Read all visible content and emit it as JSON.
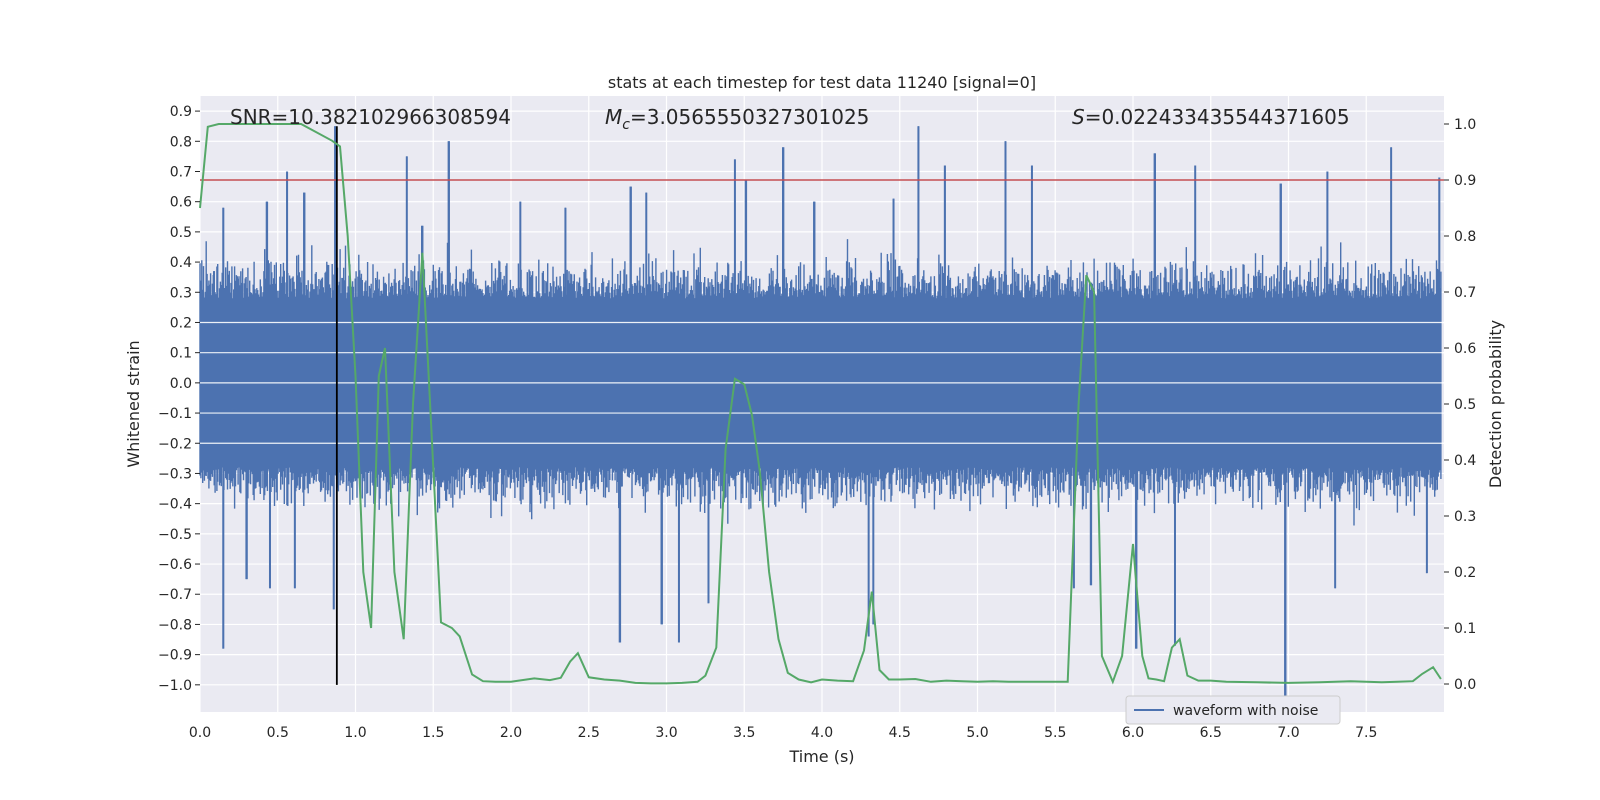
{
  "chart_data": {
    "type": "line",
    "title": "stats at each timestep for test data 11240 [signal=0]",
    "xlabel": "Time (s)",
    "ylabel": "Whitened strain",
    "y2label": "Detection probability",
    "xlim": [
      0.0,
      8.0
    ],
    "ylim": [
      -1.09,
      0.95
    ],
    "y2lim": [
      -0.05,
      1.05
    ],
    "grid": true,
    "legend": {
      "placement": "lower-right",
      "entries": [
        "waveform with noise"
      ]
    },
    "x_ticks": [
      "0.0",
      "0.5",
      "1.0",
      "1.5",
      "2.0",
      "2.5",
      "3.0",
      "3.5",
      "4.0",
      "4.5",
      "5.0",
      "5.5",
      "6.0",
      "6.5",
      "7.0",
      "7.5"
    ],
    "y_ticks": [
      "0.9",
      "0.8",
      "0.7",
      "0.6",
      "0.5",
      "0.4",
      "0.3",
      "0.2",
      "0.1",
      "0.0",
      "−0.1",
      "−0.2",
      "−0.3",
      "−0.4",
      "−0.5",
      "−0.6",
      "−0.7",
      "−0.8",
      "−0.9",
      "−1.0"
    ],
    "y2_ticks": [
      "1.0",
      "0.9",
      "0.8",
      "0.7",
      "0.6",
      "0.5",
      "0.4",
      "0.3",
      "0.2",
      "0.1",
      "0.0"
    ],
    "annotations": {
      "snr": "SNR=10.382102966308594",
      "mc_symbol": "M",
      "mc_sub": "c",
      "mc_value": "=3.0565550327301025",
      "s_symbol": "S",
      "s_value": "=0.022433435544371605"
    },
    "series": [
      {
        "name": "waveform with noise",
        "axis": "left",
        "color": "#4c72b0",
        "note_values": "dense noisy strain, band approx ±0.3 with spikes",
        "spikes_up": [
          [
            0.09,
            0.37
          ],
          [
            0.15,
            0.58
          ],
          [
            0.43,
            0.6
          ],
          [
            0.56,
            0.7
          ],
          [
            0.67,
            0.63
          ],
          [
            0.87,
            0.85
          ],
          [
            1.33,
            0.75
          ],
          [
            1.43,
            0.52
          ],
          [
            1.6,
            0.8
          ],
          [
            2.06,
            0.6
          ],
          [
            2.35,
            0.58
          ],
          [
            2.77,
            0.65
          ],
          [
            2.87,
            0.63
          ],
          [
            3.44,
            0.74
          ],
          [
            3.51,
            0.67
          ],
          [
            3.75,
            0.78
          ],
          [
            3.95,
            0.6
          ],
          [
            4.46,
            0.61
          ],
          [
            4.62,
            0.85
          ],
          [
            4.79,
            0.72
          ],
          [
            5.18,
            0.8
          ],
          [
            5.35,
            0.72
          ],
          [
            6.14,
            0.76
          ],
          [
            6.4,
            0.72
          ],
          [
            6.95,
            0.66
          ],
          [
            7.25,
            0.7
          ],
          [
            7.66,
            0.78
          ],
          [
            7.97,
            0.68
          ]
        ],
        "spikes_down": [
          [
            0.15,
            -0.88
          ],
          [
            0.3,
            -0.65
          ],
          [
            0.45,
            -0.68
          ],
          [
            0.61,
            -0.68
          ],
          [
            0.86,
            -0.75
          ],
          [
            2.7,
            -0.86
          ],
          [
            2.97,
            -0.8
          ],
          [
            3.08,
            -0.86
          ],
          [
            3.27,
            -0.73
          ],
          [
            4.3,
            -0.84
          ],
          [
            4.33,
            -0.8
          ],
          [
            5.62,
            -0.68
          ],
          [
            5.73,
            -0.67
          ],
          [
            6.02,
            -0.88
          ],
          [
            6.27,
            -0.87
          ],
          [
            6.98,
            -1.05
          ],
          [
            7.3,
            -0.68
          ],
          [
            7.89,
            -0.63
          ]
        ]
      },
      {
        "name": "",
        "axis": "right",
        "color": "#55a868",
        "x": [
          0.0,
          0.05,
          0.12,
          0.2,
          0.3,
          0.4,
          0.5,
          0.65,
          0.85,
          0.9,
          0.95,
          1.0,
          1.05,
          1.1,
          1.15,
          1.19,
          1.25,
          1.31,
          1.37,
          1.43,
          1.48,
          1.55,
          1.62,
          1.67,
          1.75,
          1.82,
          1.9,
          2.0,
          2.15,
          2.25,
          2.32,
          2.38,
          2.43,
          2.5,
          2.6,
          2.7,
          2.8,
          2.9,
          3.0,
          3.1,
          3.2,
          3.25,
          3.32,
          3.38,
          3.44,
          3.5,
          3.55,
          3.6,
          3.66,
          3.72,
          3.78,
          3.85,
          3.93,
          4.0,
          4.1,
          4.2,
          4.27,
          4.32,
          4.37,
          4.43,
          4.5,
          4.6,
          4.7,
          4.8,
          4.9,
          5.0,
          5.1,
          5.2,
          5.3,
          5.4,
          5.5,
          5.58,
          5.65,
          5.7,
          5.75,
          5.8,
          5.87,
          5.93,
          6.0,
          6.06,
          6.1,
          6.15,
          6.2,
          6.25,
          6.3,
          6.35,
          6.42,
          6.5,
          6.6,
          6.8,
          7.0,
          7.2,
          7.4,
          7.5,
          7.6,
          7.7,
          7.8,
          7.86,
          7.93,
          7.98
        ],
        "y": [
          0.85,
          0.995,
          1.0,
          1.0,
          1.0,
          1.0,
          1.0,
          1.0,
          0.97,
          0.96,
          0.8,
          0.55,
          0.2,
          0.1,
          0.55,
          0.6,
          0.2,
          0.08,
          0.5,
          0.77,
          0.5,
          0.11,
          0.1,
          0.085,
          0.017,
          0.005,
          0.004,
          0.004,
          0.01,
          0.007,
          0.011,
          0.04,
          0.055,
          0.012,
          0.008,
          0.006,
          0.002,
          0.001,
          0.001,
          0.002,
          0.004,
          0.015,
          0.065,
          0.42,
          0.545,
          0.535,
          0.48,
          0.38,
          0.2,
          0.08,
          0.02,
          0.008,
          0.003,
          0.008,
          0.006,
          0.005,
          0.06,
          0.165,
          0.025,
          0.008,
          0.008,
          0.009,
          0.004,
          0.006,
          0.005,
          0.004,
          0.005,
          0.004,
          0.004,
          0.004,
          0.004,
          0.004,
          0.5,
          0.73,
          0.7,
          0.05,
          0.004,
          0.05,
          0.25,
          0.05,
          0.01,
          0.008,
          0.005,
          0.065,
          0.08,
          0.015,
          0.006,
          0.006,
          0.004,
          0.003,
          0.002,
          0.003,
          0.005,
          0.004,
          0.003,
          0.004,
          0.005,
          0.018,
          0.03,
          0.009
        ]
      },
      {
        "name": "",
        "axis": "right",
        "color": "#c44e52",
        "type": "hline",
        "y": 0.9
      },
      {
        "name": "",
        "axis": "left",
        "color": "#000000",
        "type": "vline",
        "x": 0.88,
        "y_from": -1.0,
        "y_to": 0.85
      }
    ]
  }
}
